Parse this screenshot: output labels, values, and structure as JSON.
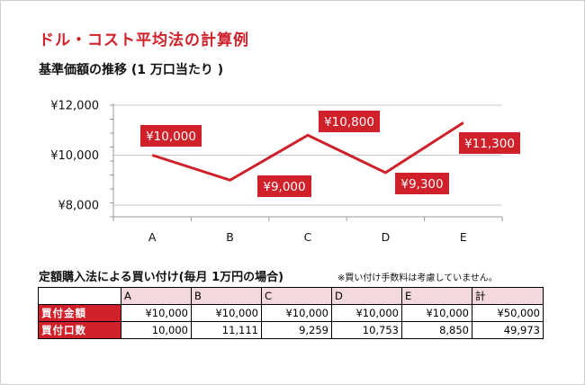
{
  "main_title": "ドル・コスト平均法の計算例",
  "chart_title": "基準価額の推移 (1 万口当たり )",
  "chart_data": {
    "type": "line",
    "title": "基準価額の推移 (1 万口当たり )",
    "categories": [
      "A",
      "B",
      "C",
      "D",
      "E"
    ],
    "series": [
      {
        "values": [
          10000,
          9000,
          10800,
          9300,
          11300
        ],
        "color": "#d0202a"
      }
    ],
    "data_labels": [
      "¥10,000",
      "",
      "¥10,800",
      "",
      "¥11,300"
    ],
    "extra_labels": [
      "¥9,000",
      "¥9,300"
    ],
    "ylim": [
      8000,
      12000
    ],
    "yticks": [
      8000,
      10000,
      12000
    ],
    "ytick_labels": [
      "¥8,000",
      "¥10,000",
      "¥12,000"
    ],
    "grid": true,
    "label_bg_color": "#d0202a"
  },
  "plan": {
    "title": "定額購入法による買い付け(毎月 1万円の場合)",
    "note": "※買い付け手数料は考慮していません。",
    "headers": [
      "A",
      "B",
      "C",
      "D",
      "E",
      "計"
    ],
    "rows": [
      {
        "label": "買付金額",
        "cells": [
          "¥10,000",
          "¥10,000",
          "¥10,000",
          "¥10,000",
          "¥10,000",
          "¥50,000"
        ]
      },
      {
        "label": "買付口数",
        "cells": [
          "10,000",
          "11,111",
          "9,259",
          "10,753",
          "8,850",
          "49,973"
        ]
      }
    ]
  }
}
